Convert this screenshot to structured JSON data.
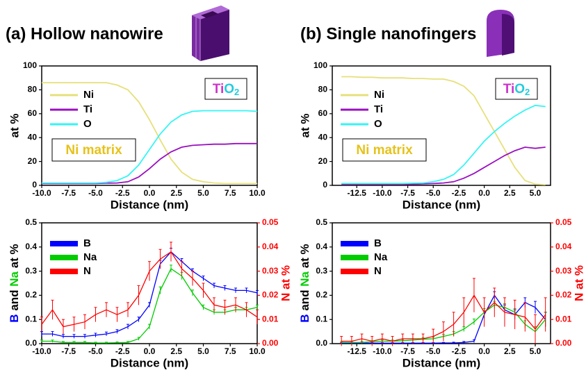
{
  "chart_data": [
    {
      "type": "line",
      "title": "(a) Hollow nanowire",
      "xlabel": "Distance (nm)",
      "ylabel": "at %",
      "x": [
        -10,
        -9,
        -8,
        -7,
        -6,
        -5,
        -4,
        -3,
        -2,
        -1,
        0,
        1,
        2,
        3,
        4,
        5,
        6,
        7,
        8,
        9,
        10
      ],
      "series": [
        {
          "name": "Ni",
          "color": "#e6e07a",
          "values": [
            86,
            86,
            86,
            86,
            86,
            86,
            86,
            84,
            80,
            70,
            55,
            38,
            22,
            11,
            5,
            3,
            2,
            1.5,
            1.5,
            1.5,
            1.5
          ]
        },
        {
          "name": "Ti",
          "color": "#9a0fc0",
          "values": [
            1.5,
            1.5,
            1.5,
            1.5,
            1.5,
            1.5,
            1.8,
            2,
            3,
            7,
            14,
            22,
            28,
            32,
            33.5,
            34,
            34.5,
            34.5,
            35,
            35,
            35
          ]
        },
        {
          "name": "O",
          "color": "#33f5f5",
          "values": [
            2,
            2,
            2,
            2,
            2,
            2,
            2.5,
            4,
            8,
            17,
            30,
            43,
            53,
            59,
            62,
            62.5,
            62.5,
            62.5,
            62.5,
            62.5,
            62
          ]
        }
      ],
      "xlim": [
        -10,
        10
      ],
      "ylim": [
        0,
        100
      ],
      "xticks": [
        {
          "value": -10,
          "label": "-10.0"
        },
        {
          "value": -7.5,
          "label": "-7.5"
        },
        {
          "value": -5,
          "label": "-5.0"
        },
        {
          "value": -2.5,
          "label": "-2.5"
        },
        {
          "value": 0,
          "label": "0.0"
        },
        {
          "value": 2.5,
          "label": "2.5"
        },
        {
          "value": 5,
          "label": "5.0"
        },
        {
          "value": 7.5,
          "label": "7.5"
        },
        {
          "value": 10,
          "label": "10.0"
        }
      ],
      "yticks": [
        0,
        20,
        40,
        60,
        80,
        100
      ],
      "annotations": [
        {
          "parts": [
            {
              "text": "Ni matrix",
              "color": "#e6c21a"
            }
          ]
        },
        {
          "parts": [
            {
              "text": "Ti",
              "color": "#cc33cc"
            },
            {
              "text": "O",
              "color": "#22ccdd"
            },
            {
              "text": "2",
              "color": "#22ccdd"
            }
          ]
        }
      ]
    },
    {
      "type": "line",
      "title": "(b) Single nanofingers",
      "xlabel": "Distance (nm)",
      "ylabel": "at %",
      "x": [
        -14,
        -13,
        -12,
        -11,
        -10,
        -9,
        -8,
        -7,
        -6,
        -5,
        -4,
        -3,
        -2,
        -1,
        0,
        1,
        2,
        3,
        4,
        5,
        6
      ],
      "series": [
        {
          "name": "Ni",
          "color": "#e6e07a",
          "values": [
            91,
            91,
            90.5,
            90.5,
            90,
            90,
            90,
            89.5,
            89.5,
            89,
            89,
            87,
            83,
            75,
            60,
            45,
            30,
            15,
            4,
            1,
            0.5
          ]
        },
        {
          "name": "Ti",
          "color": "#9a0fc0",
          "values": [
            1,
            1,
            1,
            1,
            1,
            1,
            1,
            1,
            1.2,
            1.5,
            2,
            3,
            6,
            10,
            15,
            20,
            25,
            29,
            32,
            31,
            32
          ]
        },
        {
          "name": "O",
          "color": "#33f5f5",
          "values": [
            1.5,
            1.5,
            1.5,
            1.5,
            1.5,
            1.5,
            1.5,
            1.8,
            2,
            3,
            5,
            9,
            17,
            27,
            37,
            45,
            52,
            58,
            63,
            67,
            66
          ]
        }
      ],
      "xlim": [
        -14.9,
        6.5
      ],
      "ylim": [
        0,
        100
      ],
      "xticks": [
        {
          "value": -12.5,
          "label": "-12.5"
        },
        {
          "value": -10,
          "label": "-10.0"
        },
        {
          "value": -7.5,
          "label": "-7.5"
        },
        {
          "value": -5,
          "label": "-5.0"
        },
        {
          "value": -2.5,
          "label": "-2.5"
        },
        {
          "value": 0,
          "label": "0.0"
        },
        {
          "value": 2.5,
          "label": "2.5"
        },
        {
          "value": 5,
          "label": "5.0"
        }
      ],
      "yticks": [
        0,
        20,
        40,
        60,
        80,
        100
      ],
      "annotations": [
        {
          "parts": [
            {
              "text": "Ni matrix",
              "color": "#e6c21a"
            }
          ]
        },
        {
          "parts": [
            {
              "text": "Ti",
              "color": "#cc33cc"
            },
            {
              "text": "O",
              "color": "#22ccdd"
            },
            {
              "text": "2",
              "color": "#22ccdd"
            }
          ]
        }
      ]
    },
    {
      "type": "errorline",
      "xlabel": "Distance (nm)",
      "ylabel_parts": [
        {
          "text": "B",
          "color": "#0000ff"
        },
        {
          "text": " and ",
          "color": "#000000"
        },
        {
          "text": "Na",
          "color": "#00cc00"
        },
        {
          "text": " at %",
          "color": "#000000"
        }
      ],
      "y2label": "N at %",
      "y2color": "#ff0000",
      "x": [
        -10,
        -9,
        -8,
        -7,
        -6,
        -5,
        -4,
        -3,
        -2,
        -1,
        0,
        1,
        2,
        3,
        4,
        5,
        6,
        7,
        8,
        9,
        10
      ],
      "series": [
        {
          "name": "B",
          "color": "#0000ff",
          "values": [
            0.04,
            0.04,
            0.03,
            0.03,
            0.03,
            0.035,
            0.04,
            0.05,
            0.07,
            0.1,
            0.16,
            0.33,
            0.38,
            0.34,
            0.3,
            0.27,
            0.24,
            0.23,
            0.22,
            0.22,
            0.21
          ],
          "errors": [
            0.01,
            0.01,
            0.008,
            0.008,
            0.008,
            0.008,
            0.008,
            0.008,
            0.01,
            0.01,
            0.01,
            0.015,
            0.015,
            0.012,
            0.01,
            0.01,
            0.01,
            0.01,
            0.01,
            0.01,
            0.01
          ]
        },
        {
          "name": "Na",
          "color": "#00cc00",
          "values": [
            0.01,
            0.01,
            0.005,
            0.005,
            0.005,
            0.003,
            0.003,
            0.004,
            0.005,
            0.02,
            0.07,
            0.22,
            0.31,
            0.28,
            0.21,
            0.15,
            0.13,
            0.13,
            0.14,
            0.14,
            0.15
          ],
          "errors": [
            0.005,
            0.005,
            0.004,
            0.004,
            0.004,
            0.003,
            0.003,
            0.003,
            0.004,
            0.006,
            0.01,
            0.015,
            0.015,
            0.015,
            0.012,
            0.01,
            0.01,
            0.01,
            0.01,
            0.01,
            0.01
          ]
        },
        {
          "name": "N",
          "color": "#ff0000",
          "axis": "y2",
          "values": [
            0.008,
            0.014,
            0.007,
            0.008,
            0.009,
            0.012,
            0.014,
            0.012,
            0.014,
            0.02,
            0.03,
            0.035,
            0.038,
            0.031,
            0.027,
            0.022,
            0.016,
            0.015,
            0.016,
            0.014,
            0.011
          ],
          "errors": [
            0.003,
            0.004,
            0.003,
            0.003,
            0.003,
            0.003,
            0.003,
            0.003,
            0.003,
            0.004,
            0.004,
            0.004,
            0.004,
            0.003,
            0.003,
            0.003,
            0.003,
            0.003,
            0.003,
            0.003,
            0.003
          ]
        }
      ],
      "xlim": [
        -10,
        10
      ],
      "ylim": [
        0,
        0.5
      ],
      "y2lim": [
        0,
        0.05
      ],
      "xticks": [
        {
          "value": -10,
          "label": "-10.0"
        },
        {
          "value": -7.5,
          "label": "-7.5"
        },
        {
          "value": -5,
          "label": "-5.0"
        },
        {
          "value": -2.5,
          "label": "-2.5"
        },
        {
          "value": 0,
          "label": "0.0"
        },
        {
          "value": 2.5,
          "label": "2.5"
        },
        {
          "value": 5,
          "label": "5.0"
        },
        {
          "value": 7.5,
          "label": "7.5"
        },
        {
          "value": 10,
          "label": "10.0"
        }
      ],
      "yticks": [
        {
          "value": 0,
          "label": "0.0"
        },
        0.1,
        0.2,
        0.3,
        0.4,
        0.5
      ],
      "y2ticks": [
        {
          "value": 0,
          "label": "0.00"
        },
        0.01,
        0.02,
        0.03,
        0.04,
        0.05
      ]
    },
    {
      "type": "errorline",
      "xlabel": "Distance (nm)",
      "ylabel_parts": [
        {
          "text": "B",
          "color": "#0000ff"
        },
        {
          "text": " and ",
          "color": "#000000"
        },
        {
          "text": "Na",
          "color": "#00cc00"
        },
        {
          "text": " at %",
          "color": "#000000"
        }
      ],
      "y2label": "N at %",
      "y2color": "#ff0000",
      "x": [
        -14,
        -13,
        -12,
        -11,
        -10,
        -9,
        -8,
        -7,
        -6,
        -5,
        -4,
        -3,
        -2,
        -1,
        0,
        1,
        2,
        3,
        4,
        5,
        6
      ],
      "series": [
        {
          "name": "B",
          "color": "#0000ff",
          "values": [
            0.002,
            0.002,
            0.002,
            0.002,
            0.002,
            0.002,
            0.002,
            0.002,
            0.002,
            0.002,
            0.003,
            0.003,
            0.005,
            0.01,
            0.12,
            0.2,
            0.14,
            0.12,
            0.17,
            0.15,
            0.1
          ],
          "errors": [
            0.002,
            0.002,
            0.002,
            0.002,
            0.002,
            0.002,
            0.002,
            0.002,
            0.002,
            0.002,
            0.002,
            0.003,
            0.004,
            0.006,
            0.015,
            0.015,
            0.02,
            0.02,
            0.02,
            0.025,
            0.03
          ]
        },
        {
          "name": "Na",
          "color": "#00cc00",
          "values": [
            0.005,
            0.005,
            0.005,
            0.008,
            0.01,
            0.01,
            0.012,
            0.015,
            0.018,
            0.02,
            0.03,
            0.04,
            0.06,
            0.09,
            0.13,
            0.16,
            0.15,
            0.13,
            0.08,
            0.05,
            0.1
          ],
          "errors": [
            0.004,
            0.004,
            0.004,
            0.004,
            0.005,
            0.005,
            0.005,
            0.006,
            0.006,
            0.007,
            0.008,
            0.01,
            0.01,
            0.012,
            0.015,
            0.015,
            0.015,
            0.015,
            0.015,
            0.02,
            0.03
          ]
        },
        {
          "name": "N",
          "color": "#ff0000",
          "axis": "y2",
          "values": [
            0.001,
            0.001,
            0.002,
            0.001,
            0.002,
            0.001,
            0.002,
            0.002,
            0.002,
            0.003,
            0.005,
            0.008,
            0.013,
            0.02,
            0.013,
            0.017,
            0.013,
            0.012,
            0.011,
            0.006,
            0.012
          ],
          "errors": [
            0.002,
            0.002,
            0.002,
            0.002,
            0.002,
            0.002,
            0.002,
            0.002,
            0.002,
            0.003,
            0.004,
            0.005,
            0.006,
            0.007,
            0.006,
            0.006,
            0.006,
            0.006,
            0.006,
            0.006,
            0.007
          ]
        }
      ],
      "xlim": [
        -14.9,
        6.5
      ],
      "ylim": [
        0,
        0.5
      ],
      "y2lim": [
        0,
        0.05
      ],
      "xticks": [
        {
          "value": -12.5,
          "label": "-12.5"
        },
        {
          "value": -10,
          "label": "-10.0"
        },
        {
          "value": -7.5,
          "label": "-7.5"
        },
        {
          "value": -5,
          "label": "-5.0"
        },
        {
          "value": -2.5,
          "label": "-2.5"
        },
        {
          "value": 0,
          "label": "0.0"
        },
        {
          "value": 2.5,
          "label": "2.5"
        },
        {
          "value": 5,
          "label": "5.0"
        }
      ],
      "yticks": [
        {
          "value": 0,
          "label": "0.0"
        },
        0.1,
        0.2,
        0.3,
        0.4,
        0.5
      ],
      "y2ticks": [
        {
          "value": 0,
          "label": "0.00"
        },
        0.01,
        0.02,
        0.03,
        0.04,
        0.05
      ]
    }
  ]
}
